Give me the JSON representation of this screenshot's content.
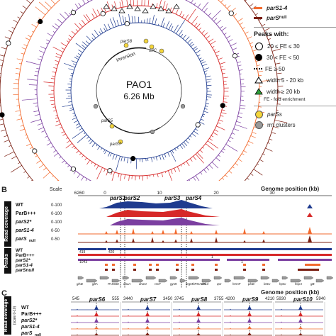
{
  "panelA": {
    "center_title": "PAO1",
    "center_subtitle": "6.26 Mb",
    "inversion_label": "inversion",
    "oriC_label": "oriC",
    "pars_labels": [
      "parS1",
      "parS2",
      "parS3",
      "parS4",
      "parS5",
      "parS6",
      "parS7",
      "parS8",
      "parS9",
      "parS10"
    ],
    "legend": {
      "tracks": [
        {
          "label": "parS1-4",
          "color": "#f26a2e"
        },
        {
          "label": "parS",
          "suffix": "null",
          "color": "#7a1f12"
        }
      ],
      "peaks_title": "Peaks with:",
      "peaks": [
        {
          "symbol": "open-circle",
          "label": "20 ≤ FE ≤ 30"
        },
        {
          "symbol": "filled-circle",
          "label": "30 < FE < 50"
        },
        {
          "symbol": "dashes",
          "label": "FE ≥ 50"
        },
        {
          "symbol": "open-triangle",
          "label": "width 5 - 20 kb"
        },
        {
          "symbol": "green-triangle",
          "label": "width ≥ 20 kb"
        }
      ],
      "fe_note": "FE - fold enrichment",
      "pars_key": "parSs",
      "rrn_key": "rrn clusters"
    }
  },
  "panelB": {
    "letter": "B",
    "scale_label": "Scale",
    "ticks": [
      "6260",
      "0",
      "10",
      "20",
      "30"
    ],
    "genome_position_label": "Genome position (kb)",
    "pars_markers": [
      "parS1",
      "parS2",
      "parS3",
      "parS4"
    ],
    "read_coverage_label": "Read coverage",
    "peaks_label": "Peaks",
    "tracks": [
      {
        "name": "WT",
        "range": "0-100",
        "color": "#1f3b8f"
      },
      {
        "name": "ParB+++",
        "range": "0-100",
        "color": "#d62828"
      },
      {
        "name": "parS2*",
        "range": "0-100",
        "color": "#7b3fa0"
      },
      {
        "name": "parS1-4",
        "range": "0-50",
        "color": "#f26a2e"
      },
      {
        "name": "parS",
        "suffix": "null",
        "range": "0-50",
        "color": "#7a1f12"
      }
    ],
    "peak_numbers": [
      "419",
      "420",
      "1",
      "1043",
      "1"
    ],
    "genes": [
      "glsB",
      "gltA",
      "PA5568",
      "dnaA",
      "dnaN",
      "recF",
      "gyrB",
      "fegM/tRNA0013",
      "def",
      "qor",
      "hemF",
      "plcB",
      "betC",
      "hptC",
      "hcpA",
      "gB"
    ]
  },
  "panelC": {
    "letter": "C",
    "genome_position_label": "Genome position (kb)",
    "read_coverage_label": "Read coverage",
    "read_coverage_sub": "(scale 0-10)",
    "groups": [
      {
        "name": "parS6",
        "ticks": [
          "545",
          "555"
        ]
      },
      {
        "name": "parS7",
        "ticks": [
          "3440",
          "3450"
        ]
      },
      {
        "name": "parS8",
        "ticks": [
          "3745",
          "3755"
        ]
      },
      {
        "name": "parS9",
        "ticks": [
          "4200",
          "4210"
        ]
      },
      {
        "name": "parS10",
        "ticks": [
          "5930",
          "5940"
        ]
      }
    ],
    "tracks": [
      {
        "name": "WT",
        "color": "#1f3b8f"
      },
      {
        "name": "ParB+++",
        "color": "#d62828"
      },
      {
        "name": "parS2*",
        "color": "#7b3fa0"
      },
      {
        "name": "parS1-4",
        "color": "#f26a2e"
      },
      {
        "name": "parS",
        "suffix": "null",
        "color": "#7a1f12"
      }
    ]
  }
}
